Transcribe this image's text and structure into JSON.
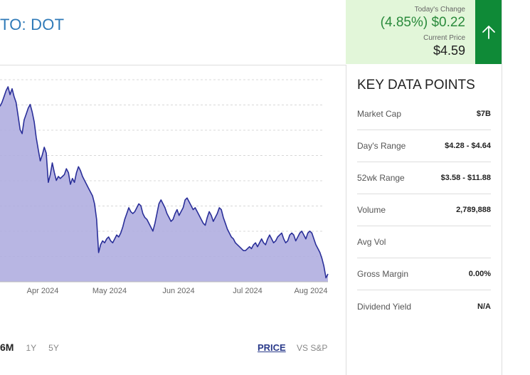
{
  "header": {
    "title": "TO: DOT"
  },
  "change": {
    "label": "Today's Change",
    "value": "(4.85%) $0.22",
    "price_label": "Current Price",
    "price": "$4.59",
    "direction_icon": "arrow-up-icon",
    "accent_color": "#0f8a37"
  },
  "chart_data": {
    "type": "area",
    "title": "",
    "x_labels": [
      "Apr 2024",
      "May 2024",
      "Jun 2024",
      "Jul 2024",
      "Aug 2024"
    ],
    "ylim": [
      0,
      10
    ],
    "grid": true,
    "values": [
      9.0,
      9.2,
      9.5,
      9.8,
      10.0,
      9.6,
      9.9,
      9.5,
      9.2,
      8.5,
      7.8,
      7.6,
      8.3,
      8.6,
      8.9,
      9.1,
      8.7,
      8.2,
      7.4,
      6.8,
      6.2,
      6.5,
      6.9,
      6.6,
      5.1,
      5.5,
      6.1,
      5.6,
      5.2,
      5.4,
      5.3,
      5.4,
      5.5,
      5.8,
      5.6,
      5.0,
      5.3,
      5.1,
      5.6,
      5.9,
      5.7,
      5.4,
      5.2,
      5.0,
      4.8,
      4.6,
      4.4,
      4.0,
      3.2,
      1.5,
      1.9,
      2.1,
      2.0,
      2.2,
      2.3,
      2.1,
      2.0,
      2.2,
      2.4,
      2.3,
      2.5,
      2.8,
      3.2,
      3.5,
      3.8,
      3.6,
      3.5,
      3.6,
      3.8,
      4.0,
      3.9,
      3.5,
      3.3,
      3.2,
      3.0,
      2.8,
      2.6,
      3.0,
      3.5,
      4.0,
      4.2,
      4.0,
      3.8,
      3.5,
      3.3,
      3.1,
      3.2,
      3.5,
      3.7,
      3.4,
      3.6,
      3.8,
      4.2,
      4.3,
      4.1,
      3.9,
      3.7,
      3.8,
      3.6,
      3.4,
      3.2,
      3.0,
      2.9,
      3.3,
      3.6,
      3.4,
      3.1,
      3.3,
      3.5,
      3.8,
      3.7,
      3.3,
      3.0,
      2.7,
      2.5,
      2.3,
      2.2,
      2.0,
      1.9,
      1.8,
      1.7,
      1.6,
      1.6,
      1.7,
      1.8,
      1.7,
      1.9,
      2.0,
      1.8,
      2.0,
      2.2,
      2.0,
      1.9,
      2.2,
      2.4,
      2.2,
      2.0,
      2.1,
      2.3,
      2.4,
      2.5,
      2.2,
      2.0,
      2.1,
      2.4,
      2.5,
      2.4,
      2.1,
      2.3,
      2.5,
      2.6,
      2.4,
      2.2,
      2.5,
      2.6,
      2.5,
      2.2,
      1.9,
      1.7,
      1.5,
      1.2,
      0.8,
      0.2,
      0.4
    ],
    "fill_color": "#b0aee0",
    "line_color": "#2a2f99"
  },
  "chart_controls": {
    "ranges": [
      {
        "label": "6M",
        "active": true
      },
      {
        "label": "1Y",
        "active": false
      },
      {
        "label": "5Y",
        "active": false
      }
    ],
    "modes": [
      {
        "label": "PRICE",
        "active": true
      },
      {
        "label": "VS S&P",
        "active": false
      }
    ]
  },
  "key_data": {
    "title": "KEY DATA POINTS",
    "rows": [
      {
        "label": "Market Cap",
        "value": "$7B"
      },
      {
        "label": "Day's Range",
        "value": "$4.28 - $4.64"
      },
      {
        "label": "52wk Range",
        "value": "$3.58 - $11.88"
      },
      {
        "label": "Volume",
        "value": "2,789,888"
      },
      {
        "label": "Avg Vol",
        "value": ""
      },
      {
        "label": "Gross Margin",
        "value": "0.00%"
      },
      {
        "label": "Dividend Yield",
        "value": "N/A"
      }
    ]
  }
}
